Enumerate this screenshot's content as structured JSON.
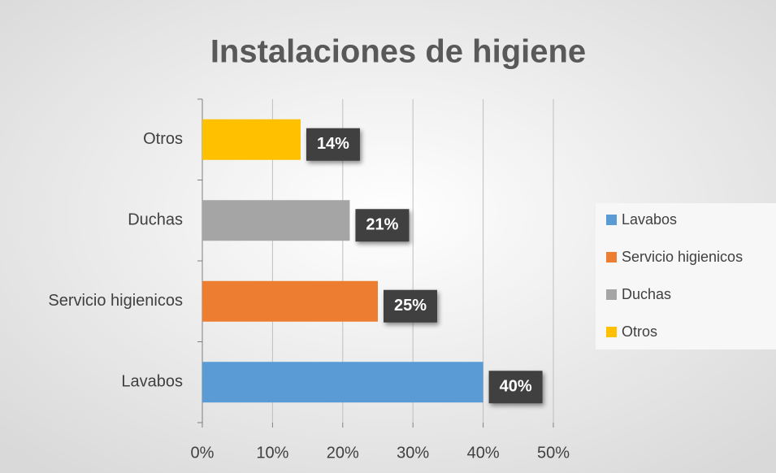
{
  "chart_data": {
    "type": "bar",
    "orientation": "horizontal",
    "title": "Instalaciones de higiene",
    "categories": [
      "Lavabos",
      "Servicio higienicos",
      "Duchas",
      "Otros"
    ],
    "values": [
      40,
      25,
      21,
      14
    ],
    "value_labels": [
      "40%",
      "25%",
      "21%",
      "14%"
    ],
    "colors": [
      "#5b9bd5",
      "#ed7d31",
      "#a5a5a5",
      "#ffc000"
    ],
    "xlim": [
      0,
      50
    ],
    "xticks": [
      {
        "value": 0,
        "label": "0%"
      },
      {
        "value": 10,
        "label": "10%"
      },
      {
        "value": 20,
        "label": "20%"
      },
      {
        "value": 30,
        "label": "30%"
      },
      {
        "value": 40,
        "label": "40%"
      },
      {
        "value": 50,
        "label": "50%"
      }
    ],
    "grid": true,
    "legend": "right"
  }
}
